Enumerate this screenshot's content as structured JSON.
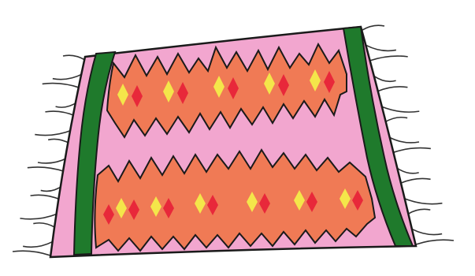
{
  "image": {
    "subject": "rug-illustration",
    "colors": {
      "background": "#ffffff",
      "rug_base": "#f2a6cf",
      "outline": "#1a1a1a",
      "border_stripe": "#1f7a2c",
      "zigzag_band": "#f07a55",
      "diamond_red": "#e8283a",
      "diamond_yellow": "#f4e64a",
      "fringe": "#333333"
    },
    "bands": [
      {
        "name": "upper-band",
        "diamond_pairs": 5
      },
      {
        "name": "lower-band",
        "diamond_pairs": 6
      }
    ]
  }
}
